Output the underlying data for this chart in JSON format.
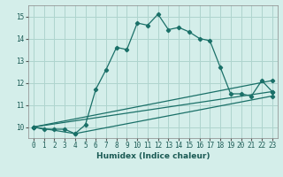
{
  "xlabel": "Humidex (Indice chaleur)",
  "ylabel": "",
  "bg_color": "#d4eeea",
  "grid_color": "#aed4ce",
  "line_color": "#1a7068",
  "xlim": [
    -0.5,
    23.5
  ],
  "ylim": [
    9.5,
    15.5
  ],
  "yticks": [
    10,
    11,
    12,
    13,
    14,
    15
  ],
  "xticks": [
    0,
    1,
    2,
    3,
    4,
    5,
    6,
    7,
    8,
    9,
    10,
    11,
    12,
    13,
    14,
    15,
    16,
    17,
    18,
    19,
    20,
    21,
    22,
    23
  ],
  "series": [
    [
      0,
      10.0
    ],
    [
      1,
      9.9
    ],
    [
      2,
      9.9
    ],
    [
      3,
      9.9
    ],
    [
      4,
      9.7
    ],
    [
      5,
      10.1
    ],
    [
      6,
      11.7
    ],
    [
      7,
      12.6
    ],
    [
      8,
      13.6
    ],
    [
      9,
      13.5
    ],
    [
      10,
      14.7
    ],
    [
      11,
      14.6
    ],
    [
      12,
      15.1
    ],
    [
      13,
      14.4
    ],
    [
      14,
      14.5
    ],
    [
      15,
      14.3
    ],
    [
      16,
      14.0
    ],
    [
      17,
      13.9
    ],
    [
      18,
      12.7
    ],
    [
      19,
      11.5
    ],
    [
      20,
      11.5
    ],
    [
      21,
      11.4
    ],
    [
      22,
      12.1
    ],
    [
      23,
      11.6
    ]
  ],
  "series2": [
    [
      0,
      10.0
    ],
    [
      23,
      11.6
    ]
  ],
  "series3": [
    [
      0,
      10.0
    ],
    [
      23,
      12.1
    ]
  ],
  "series4": [
    [
      0,
      10.0
    ],
    [
      4,
      9.7
    ],
    [
      23,
      11.4
    ]
  ]
}
